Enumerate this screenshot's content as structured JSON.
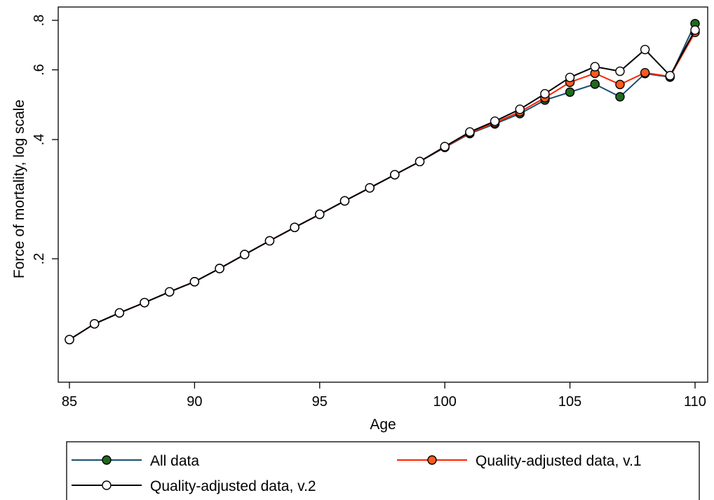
{
  "chart_data": {
    "type": "line",
    "title": "",
    "xlabel": "Age",
    "ylabel": "Force of mortality, log scale",
    "y_scale": "log",
    "xlim": [
      85,
      110
    ],
    "x_ticks": [
      85,
      90,
      95,
      100,
      105,
      110
    ],
    "x_tick_labels": [
      "85",
      "90",
      "95",
      "100",
      "105",
      "110"
    ],
    "y_ticks": [
      0.2,
      0.4,
      0.6,
      0.8
    ],
    "y_tick_labels": [
      ".2",
      ".4",
      ".6",
      ".8"
    ],
    "grid": false,
    "legend_position": "bottom",
    "x": [
      85,
      86,
      87,
      88,
      89,
      90,
      91,
      92,
      93,
      94,
      95,
      96,
      97,
      98,
      99,
      100,
      101,
      102,
      103,
      104,
      105,
      106,
      107,
      108,
      109,
      110
    ],
    "series": [
      {
        "name": "All data",
        "color": "#1a4f6e",
        "marker_fill": "#1e6b1e",
        "values": [
          0.125,
          0.137,
          0.146,
          0.155,
          0.165,
          0.175,
          0.189,
          0.205,
          0.222,
          0.24,
          0.259,
          0.28,
          0.302,
          0.326,
          0.352,
          0.382,
          0.414,
          0.438,
          0.465,
          0.503,
          0.527,
          0.552,
          0.513,
          0.587,
          0.575,
          0.785
        ]
      },
      {
        "name": "Quality-adjusted data, v.1",
        "color": "#ff2200",
        "marker_fill": "#ff5a1e",
        "values": [
          0.125,
          0.137,
          0.146,
          0.155,
          0.165,
          0.175,
          0.189,
          0.205,
          0.222,
          0.24,
          0.259,
          0.28,
          0.302,
          0.326,
          0.352,
          0.383,
          0.416,
          0.441,
          0.47,
          0.51,
          0.558,
          0.588,
          0.551,
          0.59,
          0.577,
          0.746
        ]
      },
      {
        "name": "Quality-adjusted data, v.2",
        "color": "#000000",
        "marker_fill": "#ffffff",
        "values": [
          0.125,
          0.137,
          0.146,
          0.155,
          0.165,
          0.175,
          0.189,
          0.205,
          0.222,
          0.24,
          0.259,
          0.28,
          0.302,
          0.326,
          0.352,
          0.384,
          0.418,
          0.445,
          0.477,
          0.522,
          0.574,
          0.611,
          0.595,
          0.675,
          0.58,
          0.756
        ]
      }
    ]
  }
}
